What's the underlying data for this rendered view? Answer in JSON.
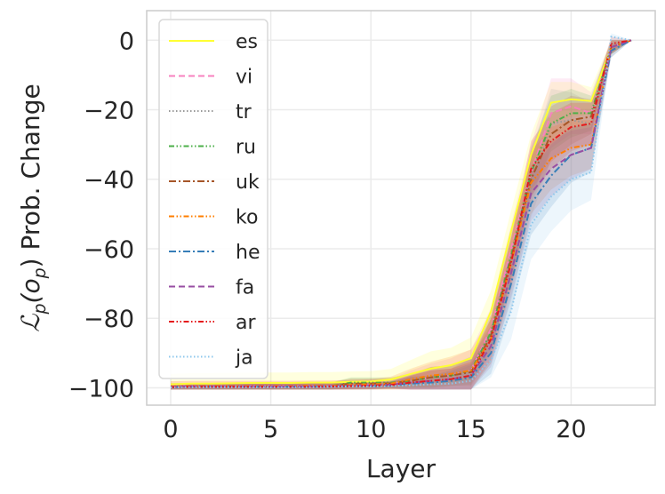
{
  "chart_data": {
    "type": "line",
    "title": "",
    "xlabel": "Layer",
    "ylabel": "𝓛p(op) Prob. Change",
    "ylabel_parts": {
      "l": "ℒ",
      "p": "p",
      "open": "(o",
      "close": ")",
      "rest": " Prob. Change"
    },
    "xlim": [
      -1.2,
      24.2
    ],
    "ylim": [
      -105,
      8.5
    ],
    "xticks": [
      0,
      5,
      10,
      15,
      20
    ],
    "yticks": [
      0,
      -20,
      -40,
      -60,
      -80,
      -100
    ],
    "ytick_labels": [
      "0",
      "−20",
      "−40",
      "−60",
      "−80",
      "−100"
    ],
    "grid": true,
    "legend_position": "upper-left",
    "x": [
      0,
      1,
      2,
      3,
      4,
      5,
      6,
      7,
      8,
      9,
      10,
      11,
      12,
      13,
      14,
      15,
      16,
      17,
      18,
      19,
      20,
      21,
      22,
      23
    ],
    "series": [
      {
        "name": "es",
        "color": "#ffff33",
        "dash": "solid",
        "values": [
          -99,
          -98.8,
          -98.8,
          -98.7,
          -98.6,
          -98.6,
          -98.6,
          -98.5,
          -98.5,
          -98.3,
          -98.2,
          -97.6,
          -96,
          -94.5,
          -93.5,
          -91.5,
          -78,
          -55,
          -33,
          -18,
          -17,
          -17.5,
          -2,
          0
        ],
        "band": [
          3,
          3,
          3,
          3,
          3,
          3,
          3,
          3,
          3,
          3,
          3,
          3,
          4,
          5,
          5,
          6,
          6,
          6,
          6,
          6,
          5,
          4,
          2,
          0
        ]
      },
      {
        "name": "vi",
        "color": "#f781bf",
        "dash": "dashed",
        "values": [
          -99.6,
          -99.5,
          -99.5,
          -99.5,
          -99.5,
          -99.5,
          -99.5,
          -99.5,
          -99.4,
          -99.3,
          -99.2,
          -99,
          -98,
          -97,
          -96.5,
          -95,
          -83,
          -60,
          -38,
          -21,
          -19,
          -21,
          -2,
          0
        ],
        "band": [
          1.5,
          1.5,
          1.5,
          1.5,
          1.5,
          1.5,
          1.5,
          1.5,
          1.5,
          1.5,
          1.5,
          1.5,
          3,
          4,
          5,
          6,
          6,
          7,
          8,
          10,
          8,
          6,
          2,
          0
        ]
      },
      {
        "name": "tr",
        "color": "#999999",
        "dash": "dotted",
        "values": [
          -99.8,
          -99.7,
          -99.7,
          -99.7,
          -99.7,
          -99.7,
          -99.7,
          -99.7,
          -99.6,
          -99.5,
          -99.5,
          -99.4,
          -99,
          -98.8,
          -98.5,
          -97.5,
          -88,
          -68,
          -42,
          -24,
          -23,
          -24,
          -3,
          0
        ],
        "band": [
          1,
          1,
          1,
          1,
          1,
          1,
          1,
          1,
          1,
          1,
          1,
          1,
          2,
          2,
          3,
          4,
          5,
          7,
          9,
          10,
          8,
          6,
          2,
          0
        ]
      },
      {
        "name": "ru",
        "color": "#4daf4a",
        "dash": "dash-dot-dot",
        "values": [
          -99.7,
          -99.6,
          -99.6,
          -99.6,
          -99.6,
          -99.6,
          -99.6,
          -99.5,
          -99.5,
          -98.5,
          -98.5,
          -98.5,
          -98,
          -97,
          -96.5,
          -95,
          -84,
          -62,
          -38,
          -24,
          -21,
          -21,
          -2,
          0
        ],
        "band": [
          1,
          1,
          1,
          1,
          1,
          1,
          1,
          1,
          1,
          1.5,
          1.5,
          1.5,
          2,
          3,
          3,
          4,
          5,
          6,
          7,
          8,
          7,
          5,
          2,
          0
        ]
      },
      {
        "name": "uk",
        "color": "#a65628",
        "dash": "dash-dot",
        "values": [
          -99.7,
          -99.6,
          -99.6,
          -99.6,
          -99.6,
          -99.6,
          -99.6,
          -99.6,
          -99.5,
          -98.8,
          -98.8,
          -98.7,
          -98,
          -97,
          -96.5,
          -95.5,
          -85,
          -63,
          -40,
          -27,
          -23,
          -22,
          -2,
          0
        ],
        "band": [
          1,
          1,
          1,
          1,
          1,
          1,
          1,
          1,
          1,
          1.5,
          1.5,
          1.5,
          2,
          3,
          3,
          4,
          5,
          6,
          7,
          8,
          7,
          5,
          2,
          0
        ]
      },
      {
        "name": "ko",
        "color": "#ff7f00",
        "dash": "dash-dot-dot",
        "values": [
          -99.6,
          -99.5,
          -99.5,
          -99.5,
          -99.5,
          -99.5,
          -99.5,
          -99.4,
          -99.4,
          -99.2,
          -99,
          -98.8,
          -97.5,
          -96.5,
          -96,
          -95,
          -86,
          -64,
          -41,
          -34,
          -31,
          -30,
          -2,
          0
        ],
        "band": [
          1.5,
          1.5,
          1.5,
          1.5,
          1.5,
          1.5,
          1.5,
          1.5,
          1.5,
          1.5,
          1.5,
          2,
          3,
          4,
          5,
          6,
          7,
          8,
          9,
          9,
          8,
          7,
          2,
          0
        ]
      },
      {
        "name": "he",
        "color": "#377eb8",
        "dash": "dash-dot",
        "values": [
          -99.8,
          -99.7,
          -99.7,
          -99.7,
          -99.7,
          -99.7,
          -99.7,
          -99.7,
          -99.6,
          -99.5,
          -99.5,
          -99.3,
          -98.8,
          -98.5,
          -98,
          -97,
          -90,
          -70,
          -47,
          -39,
          -33,
          -31,
          -3,
          0
        ],
        "band": [
          1,
          1,
          1,
          1,
          1,
          1,
          1,
          1,
          1,
          1,
          1,
          1,
          2,
          2,
          3,
          4,
          6,
          8,
          9,
          9,
          8,
          7,
          2,
          0
        ]
      },
      {
        "name": "fa",
        "color": "#984ea3",
        "dash": "dashed",
        "values": [
          -99.7,
          -99.6,
          -99.6,
          -99.6,
          -99.6,
          -99.6,
          -99.6,
          -99.6,
          -99.5,
          -99.4,
          -99.3,
          -99.1,
          -98.5,
          -98,
          -97.5,
          -96.5,
          -88,
          -67,
          -44,
          -37,
          -33,
          -31,
          -2,
          0
        ],
        "band": [
          1,
          1,
          1,
          1,
          1,
          1,
          1,
          1,
          1,
          1,
          1,
          1,
          2,
          3,
          3,
          5,
          6,
          7,
          8,
          8,
          7,
          6,
          2,
          0
        ]
      },
      {
        "name": "ar",
        "color": "#e41a1c",
        "dash": "dash-dot-dot",
        "values": [
          -99.8,
          -99.7,
          -99.7,
          -99.7,
          -99.7,
          -99.7,
          -99.7,
          -99.7,
          -99.6,
          -99.5,
          -99.4,
          -99.2,
          -98.5,
          -98,
          -97.5,
          -96.5,
          -86,
          -64,
          -37,
          -29,
          -25,
          -24,
          -1,
          0
        ],
        "band": [
          1,
          1,
          1,
          1,
          1,
          1,
          1,
          1,
          1,
          1,
          1,
          1,
          2,
          3,
          3,
          4,
          6,
          7,
          8,
          8,
          7,
          6,
          2,
          0
        ]
      },
      {
        "name": "ja",
        "color": "#8ec7ec",
        "dash": "dotted",
        "values": [
          -99.9,
          -99.8,
          -99.8,
          -99.8,
          -99.8,
          -99.8,
          -99.8,
          -99.8,
          -99.7,
          -99.6,
          -99.6,
          -99.5,
          -99.3,
          -99,
          -98.8,
          -98,
          -92,
          -78,
          -53,
          -45,
          -40,
          -38,
          1,
          0
        ],
        "band": [
          0.5,
          0.5,
          0.5,
          0.5,
          0.5,
          0.5,
          0.5,
          0.5,
          0.5,
          0.5,
          0.5,
          0.5,
          1,
          1.5,
          2,
          3,
          5,
          8,
          10,
          10,
          9,
          8,
          3,
          0
        ]
      }
    ]
  }
}
